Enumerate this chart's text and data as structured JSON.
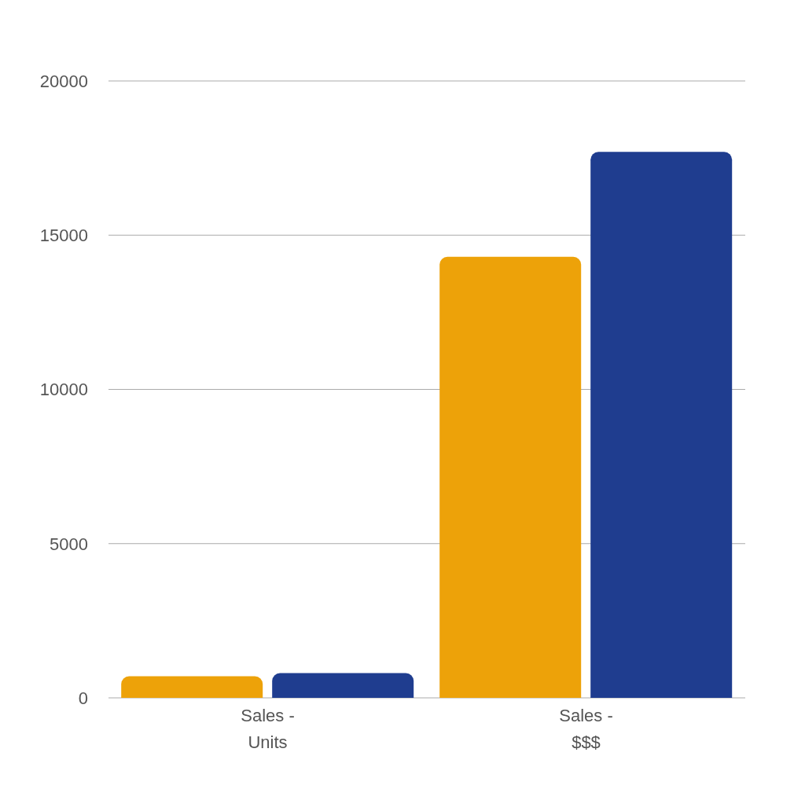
{
  "chart_data": {
    "type": "bar",
    "categories": [
      "Sales - Units",
      "Sales - $$$"
    ],
    "series": [
      {
        "color": "#eda209",
        "values": [
          700,
          14300
        ]
      },
      {
        "color": "#1f3d8f",
        "values": [
          800,
          17700
        ]
      }
    ],
    "ylim": [
      0,
      20000
    ],
    "yticks": [
      0,
      5000,
      10000,
      15000,
      20000
    ],
    "grid": "y",
    "legend": false
  }
}
